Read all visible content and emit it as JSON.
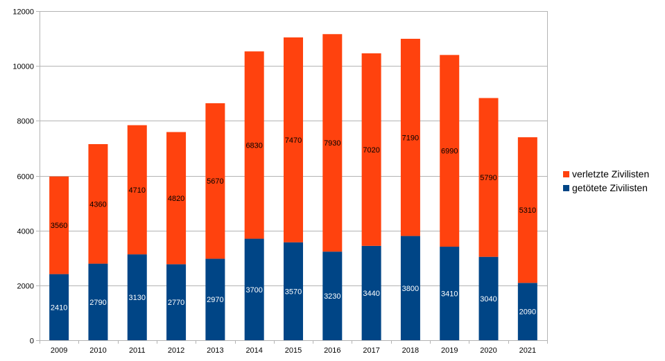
{
  "chart_data": {
    "type": "bar",
    "stacked": true,
    "title": "",
    "xlabel": "",
    "ylabel": "",
    "ylim": [
      0,
      12000
    ],
    "yticks": [
      0,
      2000,
      4000,
      6000,
      8000,
      10000,
      12000
    ],
    "ytick_labels": [
      "0",
      "2000",
      "4000",
      "6000",
      "8000",
      "10000",
      "12000"
    ],
    "grid": true,
    "legend_position": "right",
    "categories": [
      "2009",
      "2010",
      "2011",
      "2012",
      "2013",
      "2014",
      "2015",
      "2016",
      "2017",
      "2018",
      "2019",
      "2020",
      "2021"
    ],
    "series": [
      {
        "name": "getötete Zivilisten",
        "color": "#004586",
        "label_color": "#ffffff",
        "values": [
          2410,
          2790,
          3130,
          2770,
          2970,
          3700,
          3570,
          3230,
          3440,
          3800,
          3410,
          3040,
          2090
        ]
      },
      {
        "name": "verletzte Zivilisten",
        "color": "#ff420e",
        "label_color": "#000000",
        "values": [
          3560,
          4360,
          4710,
          4820,
          5670,
          6830,
          7470,
          7930,
          7020,
          7190,
          6990,
          5790,
          5310
        ]
      }
    ],
    "legend": [
      {
        "label": "verletzte Zivilisten",
        "color": "#ff420e"
      },
      {
        "label": "getötete Zivilisten",
        "color": "#004586"
      }
    ],
    "gridline_color": "#b3b3b3"
  }
}
